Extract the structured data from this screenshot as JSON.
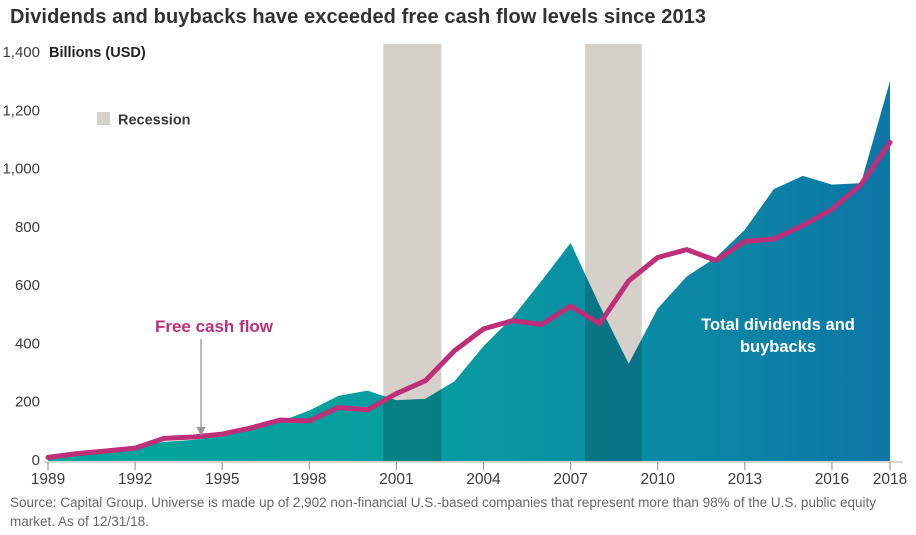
{
  "title": "Dividends and buybacks have exceeded free cash flow levels since 2013",
  "source_note": "Source: Capital Group. Universe is made up of 2,902 non-financial U.S.-based companies that represent more than 98% of the U.S. public equity market. As of 12/31/18.",
  "legend": {
    "recession_label": "Recession"
  },
  "labels": {
    "free_cash_flow": "Free cash flow",
    "total_dividends_line1": "Total dividends and",
    "total_dividends_line2": "buybacks"
  },
  "axis": {
    "unit_label": "Billions (USD)",
    "y_tick_values": [
      0,
      200,
      400,
      600,
      800,
      1000,
      1200,
      1400
    ],
    "y_tick_labels": [
      "0",
      "200",
      "400",
      "600",
      "800",
      "1,000",
      "1,200",
      "1,400"
    ],
    "x_tick_values": [
      1989,
      1992,
      1995,
      1998,
      2001,
      2004,
      2007,
      2010,
      2013,
      2016,
      2018
    ],
    "x_tick_labels": [
      "1989",
      "1992",
      "1995",
      "1998",
      "2001",
      "2004",
      "2007",
      "2010",
      "2013",
      "2016",
      "2018"
    ]
  },
  "colors": {
    "area_gradient_start": "#00a59b",
    "area_gradient_mid": "#089da1",
    "area_gradient_end": "#0d77a7",
    "free_cash_flow_line": "#be2e79",
    "recession_band": "#d5d1ca",
    "band_overlay_on_area": "#000000",
    "axis_line": "#c9c9c9",
    "tick_mark": "#9b9b9b",
    "arrow": "#969696",
    "title_text": "#323232",
    "source_text": "#676767"
  },
  "chart_data": {
    "type": "area",
    "title": "Dividends and buybacks have exceeded free cash flow levels since 2013",
    "xlabel": "",
    "ylabel": "Billions (USD)",
    "ylim": [
      0,
      1400
    ],
    "xlim": [
      1989,
      2018
    ],
    "grid": false,
    "legend_position": "top-left",
    "x": [
      1989,
      1990,
      1991,
      1992,
      1993,
      1994,
      1995,
      1996,
      1997,
      1998,
      1999,
      2000,
      2001,
      2002,
      2003,
      2004,
      2005,
      2006,
      2007,
      2008,
      2009,
      2010,
      2011,
      2012,
      2013,
      2014,
      2015,
      2016,
      2017,
      2018
    ],
    "series": [
      {
        "name": "Total dividends and buybacks",
        "type": "area",
        "values": [
          14,
          29,
          38,
          46,
          62,
          69,
          86,
          105,
          132,
          170,
          220,
          238,
          205,
          210,
          270,
          390,
          490,
          615,
          745,
          530,
          330,
          520,
          630,
          695,
          790,
          930,
          975,
          945,
          950,
          1300
        ]
      },
      {
        "name": "Free cash flow",
        "type": "line",
        "values": [
          9,
          22,
          31,
          41,
          74,
          79,
          89,
          110,
          137,
          134,
          180,
          172,
          228,
          272,
          375,
          450,
          478,
          465,
          528,
          468,
          615,
          695,
          722,
          685,
          750,
          758,
          805,
          860,
          945,
          1090
        ]
      }
    ],
    "recession_bands": [
      [
        2000.55,
        2002.55
      ],
      [
        2007.5,
        2009.45
      ]
    ]
  }
}
